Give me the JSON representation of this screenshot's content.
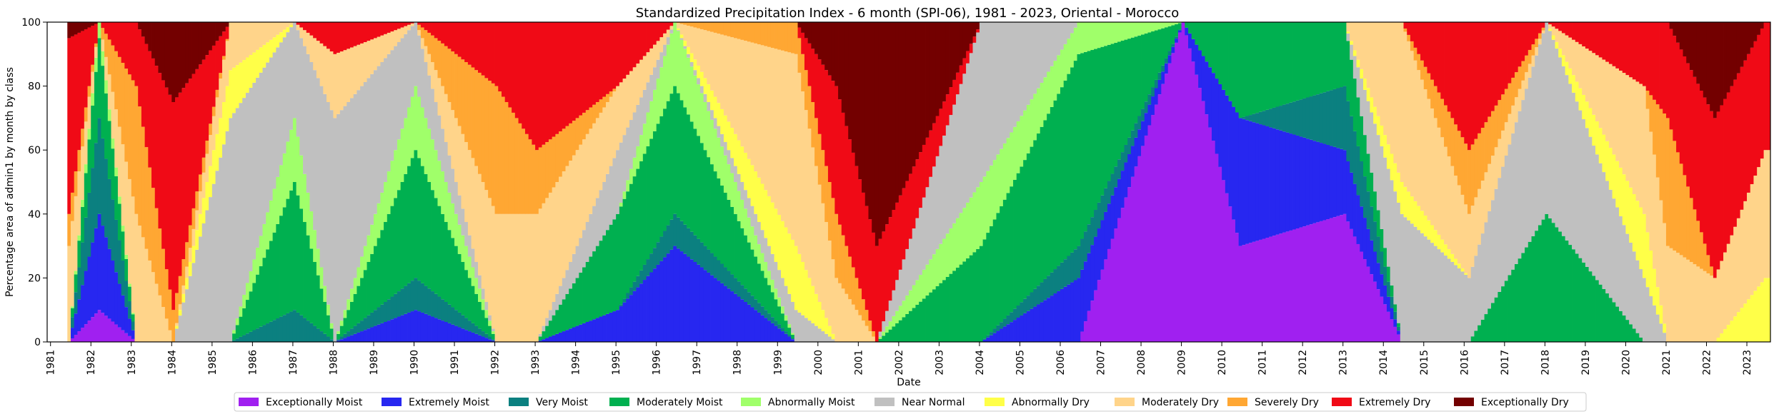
{
  "chart_data": {
    "type": "bar",
    "stacked": true,
    "title": "Standardized Precipitation Index - 6 month (SPI-06), 1981 - 2023, Oriental - Morocco",
    "xlabel": "Date",
    "ylabel": "Percentage area of admin1 by month by class",
    "ylim": [
      0,
      100
    ],
    "xlim": [
      "1980-12",
      "2023-08"
    ],
    "grid": false,
    "legend_placement": "bottom-center",
    "y_ticks": [
      0,
      20,
      40,
      60,
      80,
      100
    ],
    "x_ticks": [
      "1981",
      "1982",
      "1983",
      "1984",
      "1985",
      "1986",
      "1987",
      "1988",
      "1989",
      "1990",
      "1991",
      "1992",
      "1993",
      "1994",
      "1995",
      "1996",
      "1997",
      "1998",
      "1999",
      "2000",
      "2001",
      "2002",
      "2003",
      "2004",
      "2005",
      "2006",
      "2007",
      "2008",
      "2009",
      "2010",
      "2011",
      "2012",
      "2013",
      "2014",
      "2015",
      "2016",
      "2017",
      "2018",
      "2019",
      "2020",
      "2021",
      "2022",
      "2023"
    ],
    "start_month": "1981-06",
    "classes": [
      {
        "name": "Exceptionally Moist",
        "color": "#a020f0"
      },
      {
        "name": "Extremely Moist",
        "color": "#2727f0"
      },
      {
        "name": "Very Moist",
        "color": "#0b8080"
      },
      {
        "name": "Moderately Moist",
        "color": "#00b050"
      },
      {
        "name": "Abnormally Moist",
        "color": "#a0ff6a"
      },
      {
        "name": "Near Normal",
        "color": "#c0c0c0"
      },
      {
        "name": "Abnormally Dry",
        "color": "#ffff48"
      },
      {
        "name": "Moderately Dry",
        "color": "#ffd48a"
      },
      {
        "name": "Severely Dry",
        "color": "#ffa733"
      },
      {
        "name": "Extremely Dry",
        "color": "#f00a16"
      },
      {
        "name": "Exceptionally Dry",
        "color": "#730000"
      }
    ],
    "monthly_class_sequence": "ZZZZZZZZZZZZXXXXXXXXXXXXXXXXXVVVVVVVVVVVVVVVVVVVVVVVVVVVVVVVVVVVVVVVVVVVVVVVVVVVVVVVVVVVVVVVVVVVVVVVVVVVVVVVVVVVVVVVVVVVVVVVVVVVVVVVVVVVVVVVVVVVVVVVVVVVVVVVVVVVVVVVVVVVVVVVVVVVVVVVVVVVVVVVVVVVVVVVVVVVVVVVVVVVVVVVVVVVVVVVVVVVVVVVVVVVVVVVVVVVVVVVVVVVVVVVVVVVVVVVVVVVVVVVVVVVVVVVVVVVVVVVVVVVVVVVVVVVVVVVVVVVVVVVVVVVVVVVVVVVVVVVVVVVVVVVVVVVVVVVVVVVVVVVVVVVVVVVVVVVVVVVVVVVVVVVVVVVVVVVVVVVVVVVVVVVVVVVVVVVVVVVVVVVVVVVVVVVVVVVVVVVVVVVVVVVVVVVVVVVVVVVVVVVVVVVVVVVVVVVVVVVVVVVVVVVVVVVVVVVVVVVVVVVVVVVVVVVVVVVVVVVVVVVVVVVVVVVVVVVVVVVVVVVVVVVVVVVVVVVVVVVVVVVVVVVVVVVVVVVVVVVVVVVVVVVVVVVVVVVVVVVVVVVVVVVVVVVVVVVVVVVVVVVVVVVVVVV",
    "monthly_anchors": [
      {
        "month": "1981-06",
        "composition": {
          "Moderately Dry": 30,
          "Severely Dry": 10,
          "Extremely Dry": 55,
          "Exceptionally Dry": 5
        }
      },
      {
        "month": "1982-03",
        "composition": {
          "Exceptionally Moist": 10,
          "Extremely Moist": 30,
          "Very Moist": 30,
          "Moderately Moist": 25,
          "Abnormally Moist": 5
        }
      },
      {
        "month": "1983-02",
        "composition": {
          "Moderately Dry": 40,
          "Severely Dry": 40,
          "Extremely Dry": 20
        }
      },
      {
        "month": "1984-01",
        "composition": {
          "Severely Dry": 10,
          "Extremely Dry": 65,
          "Exceptionally Dry": 25
        }
      },
      {
        "month": "1985-06",
        "composition": {
          "Near Normal": 70,
          "Abnormally Dry": 15,
          "Moderately Dry": 15
        }
      },
      {
        "month": "1987-01",
        "composition": {
          "Very Moist": 10,
          "Moderately Moist": 40,
          "Abnormally Moist": 20,
          "Near Normal": 30
        }
      },
      {
        "month": "1988-01",
        "composition": {
          "Near Normal": 70,
          "Moderately Dry": 20,
          "Extremely Dry": 10
        }
      },
      {
        "month": "1990-01",
        "composition": {
          "Extremely Moist": 10,
          "Very Moist": 10,
          "Moderately Moist": 40,
          "Abnormally Moist": 20,
          "Near Normal": 20
        }
      },
      {
        "month": "1992-01",
        "composition": {
          "Moderately Dry": 40,
          "Severely Dry": 40,
          "Extremely Dry": 20
        }
      },
      {
        "month": "1993-01",
        "composition": {
          "Moderately Dry": 40,
          "Severely Dry": 20,
          "Extremely Dry": 40
        }
      },
      {
        "month": "1995-01",
        "composition": {
          "Extremely Moist": 10,
          "Moderately Moist": 30,
          "Near Normal": 20,
          "Moderately Dry": 20,
          "Extremely Dry": 20
        }
      },
      {
        "month": "1996-06",
        "composition": {
          "Extremely Moist": 30,
          "Very Moist": 10,
          "Moderately Moist": 40,
          "Abnormally Moist": 20
        }
      },
      {
        "month": "1999-06",
        "composition": {
          "Near Normal": 10,
          "Abnormally Dry": 20,
          "Moderately Dry": 60,
          "Severely Dry": 10
        }
      },
      {
        "month": "2000-06",
        "composition": {
          "Moderately Dry": 20,
          "Severely Dry": 20,
          "Extremely Dry": 40,
          "Exceptionally Dry": 20
        }
      },
      {
        "month": "2001-06",
        "composition": {
          "Extremely Dry": 30,
          "Exceptionally Dry": 70
        }
      },
      {
        "month": "2004-01",
        "composition": {
          "Moderately Moist": 30,
          "Abnormally Moist": 20,
          "Near Normal": 50
        }
      },
      {
        "month": "2006-06",
        "composition": {
          "Extremely Moist": 20,
          "Very Moist": 10,
          "Moderately Moist": 60,
          "Abnormally Moist": 10
        }
      },
      {
        "month": "2009-01",
        "composition": {
          "Exceptionally Moist": 100
        }
      },
      {
        "month": "2010-06",
        "composition": {
          "Exceptionally Moist": 30,
          "Extremely Moist": 40,
          "Moderately Moist": 30
        }
      },
      {
        "month": "2013-01",
        "composition": {
          "Exceptionally Moist": 40,
          "Extremely Moist": 20,
          "Very Moist": 20,
          "Moderately Moist": 20
        }
      },
      {
        "month": "2014-06",
        "composition": {
          "Near Normal": 40,
          "Abnormally Dry": 10,
          "Moderately Dry": 50
        }
      },
      {
        "month": "2016-02",
        "composition": {
          "Near Normal": 20,
          "Moderately Dry": 20,
          "Severely Dry": 20,
          "Extremely Dry": 40
        }
      },
      {
        "month": "2018-01",
        "composition": {
          "Moderately Moist": 40,
          "Near Normal": 60
        }
      },
      {
        "month": "2020-06",
        "composition": {
          "Near Normal": 20,
          "Abnormally Dry": 20,
          "Moderately Dry": 40,
          "Extremely Dry": 20
        }
      },
      {
        "month": "2021-01",
        "composition": {
          "Moderately Dry": 30,
          "Severely Dry": 40,
          "Extremely Dry": 30
        }
      },
      {
        "month": "2022-03",
        "composition": {
          "Moderately Dry": 20,
          "Extremely Dry": 50,
          "Exceptionally Dry": 30
        }
      },
      {
        "month": "2023-06",
        "composition": {
          "Abnormally Dry": 20,
          "Moderately Dry": 40,
          "Extremely Dry": 40
        }
      }
    ]
  }
}
